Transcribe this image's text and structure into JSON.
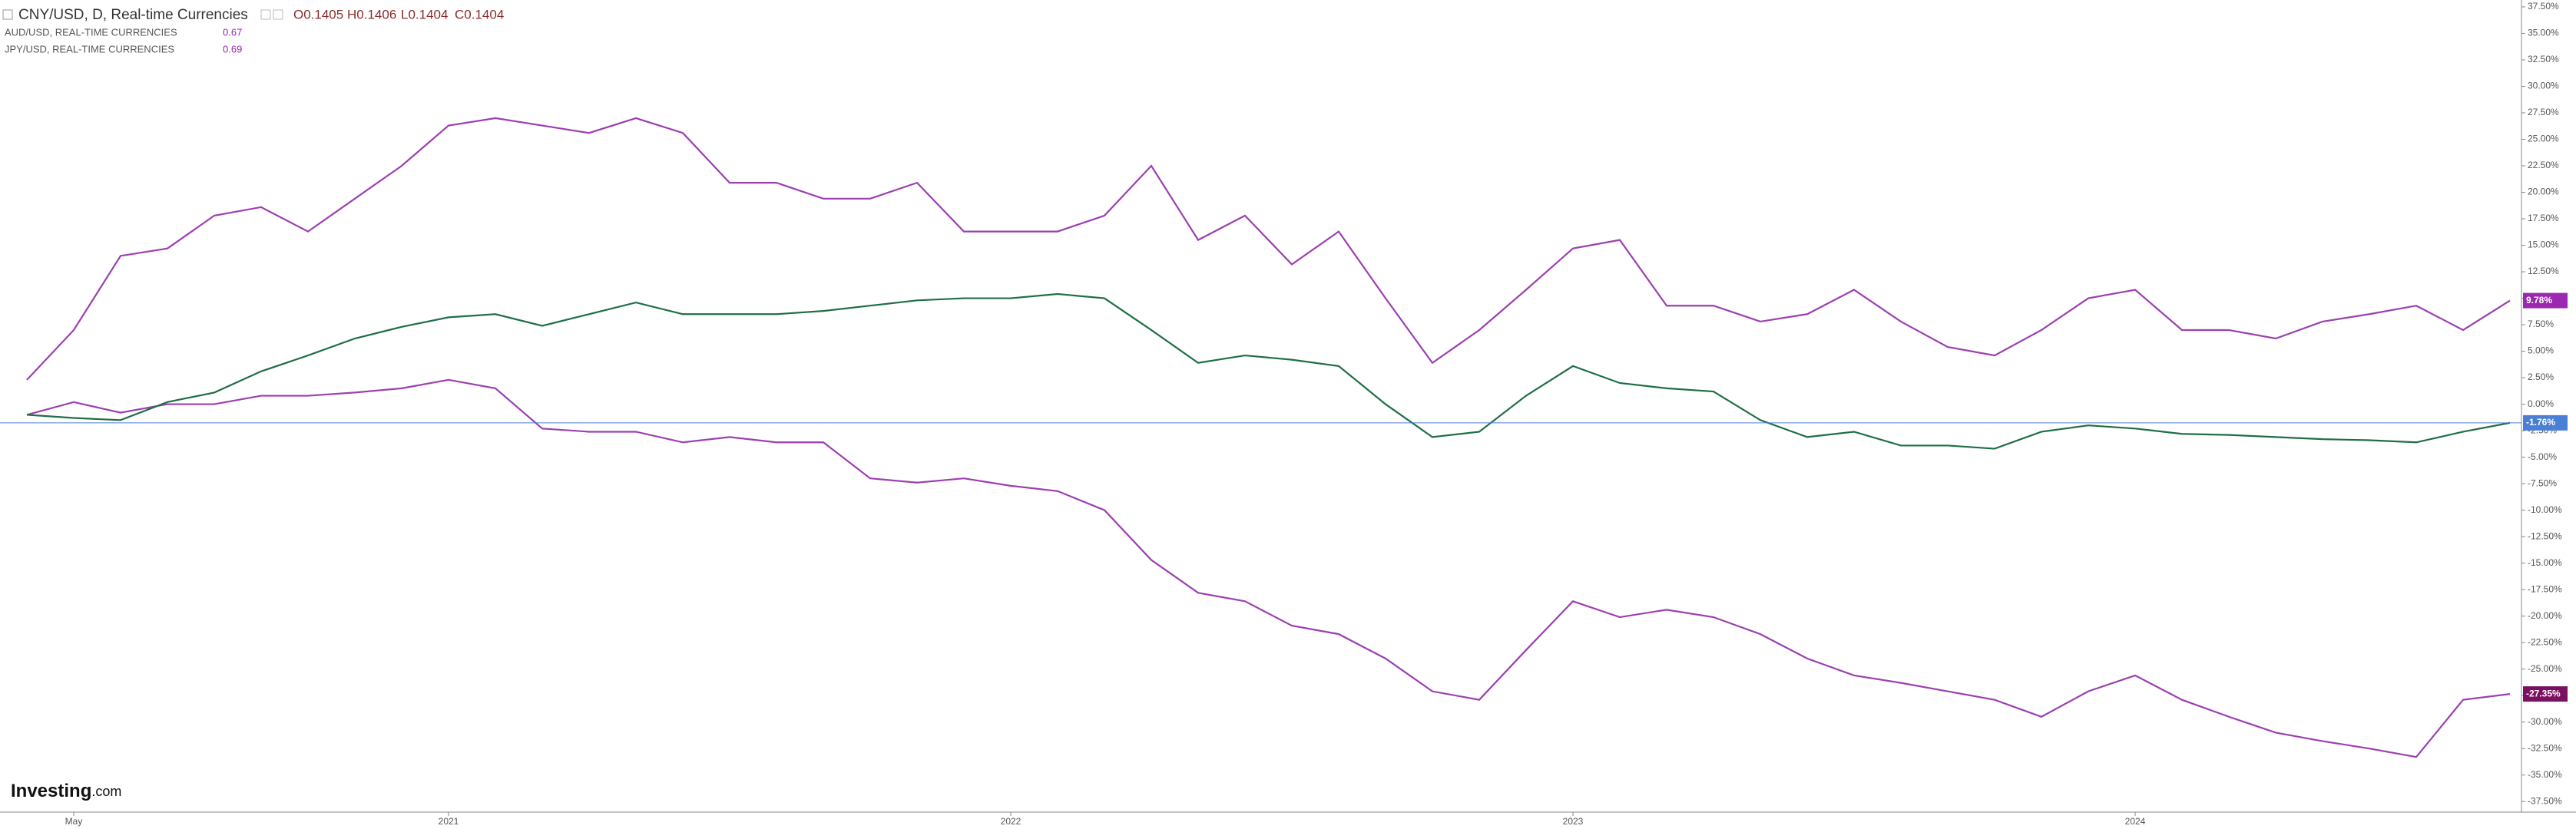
{
  "chart_data": {
    "type": "line",
    "title": "CNY/USD, D, Real-time Currencies",
    "ohlc": [
      "O0.1405",
      "H0.1406",
      "L0.1404",
      "C0.1404"
    ],
    "logo": [
      "Investing",
      ".com"
    ],
    "categories": [
      null,
      "May",
      null,
      null,
      null,
      null,
      null,
      null,
      null,
      "2021",
      null,
      null,
      null,
      null,
      null,
      null,
      null,
      null,
      null,
      null,
      null,
      "2022",
      null,
      null,
      null,
      null,
      null,
      null,
      null,
      null,
      null,
      null,
      null,
      "2023",
      null,
      null,
      null,
      null,
      null,
      null,
      null,
      null,
      null,
      null,
      null,
      "2024",
      null,
      null,
      null,
      null,
      null,
      null,
      null,
      null
    ],
    "series": [
      {
        "name": "AUD/USD, REAL-TIME CURRENCIES",
        "quote": "0.67",
        "color": "#9c3fb0",
        "label_color": "#9c27b0",
        "values": [
          2.3,
          7,
          14,
          14.7,
          17.8,
          18.6,
          16.3,
          19.4,
          22.5,
          26.3,
          27,
          26.3,
          25.6,
          27,
          25.6,
          20.9,
          20.9,
          19.4,
          19.4,
          20.9,
          16.3,
          16.3,
          16.3,
          17.8,
          22.5,
          15.5,
          17.8,
          13.2,
          16.3,
          10,
          3.9,
          7,
          10.8,
          14.7,
          15.5,
          9.3,
          9.3,
          7.8,
          8.5,
          10.8,
          7.8,
          5.4,
          4.6,
          7,
          10,
          10.8,
          7,
          7,
          6.2,
          7.8,
          8.5,
          9.3,
          7,
          9.78
        ],
        "value_labels": [
          null,
          null,
          null,
          null,
          null,
          null,
          null,
          null,
          null,
          null,
          null,
          null,
          null,
          null,
          null,
          null,
          null,
          null,
          null,
          null,
          null,
          null,
          null,
          null,
          null,
          null,
          null,
          null,
          null,
          null,
          null,
          null,
          null,
          null,
          null,
          null,
          null,
          null,
          null,
          null,
          null,
          null,
          null,
          null,
          null,
          null,
          null,
          null,
          null,
          null,
          null,
          null,
          null,
          "9.78%"
        ]
      },
      {
        "name": "JPY/USD, REAL-TIME CURRENCIES",
        "quote": "0.69",
        "color": "#9c3fb0",
        "label_color": "#7b1060",
        "values": [
          -1,
          0.2,
          -0.8,
          0,
          0,
          0.8,
          0.8,
          1.1,
          1.5,
          2.3,
          1.5,
          -2.3,
          -2.6,
          -2.6,
          -3.6,
          -3.1,
          -3.6,
          -3.6,
          -7,
          -7.4,
          -7,
          -7.7,
          -8.2,
          -10,
          -14.7,
          -17.8,
          -18.6,
          -20.9,
          -21.7,
          -24,
          -27.1,
          -27.9,
          -23.2,
          -18.6,
          -20.1,
          -19.4,
          -20.1,
          -21.7,
          -24,
          -25.6,
          -26.3,
          -27.1,
          -27.9,
          -29.5,
          -27.1,
          -25.6,
          -27.9,
          -29.5,
          -31,
          -31.8,
          -32.5,
          -33.3,
          -27.9,
          -27.35
        ],
        "value_labels": [
          null,
          null,
          null,
          null,
          null,
          null,
          null,
          null,
          null,
          null,
          null,
          null,
          null,
          null,
          null,
          null,
          null,
          null,
          null,
          null,
          null,
          null,
          null,
          null,
          null,
          null,
          null,
          null,
          null,
          null,
          null,
          null,
          null,
          null,
          null,
          null,
          null,
          null,
          null,
          null,
          null,
          null,
          null,
          null,
          null,
          null,
          null,
          null,
          null,
          null,
          null,
          null,
          null,
          "-27.35%"
        ]
      },
      {
        "color": "#1f6e45",
        "label_color": "#4a7fd6",
        "price_line": true,
        "values": [
          -1,
          -1.3,
          -1.5,
          0.2,
          1.1,
          3.1,
          4.6,
          6.2,
          7.3,
          8.2,
          8.5,
          7.4,
          8.5,
          9.6,
          8.5,
          8.5,
          8.5,
          8.8,
          9.3,
          9.8,
          10,
          10,
          10.4,
          10,
          7,
          3.9,
          4.6,
          4.2,
          3.6,
          0,
          -3.1,
          -2.6,
          0.8,
          3.6,
          2,
          1.5,
          1.2,
          -1.5,
          -3.1,
          -2.6,
          -3.9,
          -3.9,
          -4.2,
          -2.6,
          -2,
          -2.3,
          -2.8,
          -2.9,
          -3.1,
          -3.3,
          -3.4,
          -3.6,
          -2.6,
          -1.76
        ],
        "value_labels": [
          null,
          null,
          null,
          null,
          null,
          null,
          null,
          null,
          null,
          null,
          null,
          null,
          null,
          null,
          null,
          null,
          null,
          null,
          null,
          null,
          null,
          null,
          null,
          null,
          null,
          null,
          null,
          null,
          null,
          null,
          null,
          null,
          null,
          null,
          null,
          null,
          null,
          null,
          null,
          null,
          null,
          null,
          null,
          null,
          null,
          null,
          null,
          null,
          null,
          null,
          null,
          null,
          null,
          "-1.76%"
        ]
      }
    ],
    "ylim": [
      -38.5,
      38.15
    ],
    "yticks": [
      {
        "value": 37.5,
        "label": "37.50%"
      },
      {
        "value": 35,
        "label": "35.00%"
      },
      {
        "value": 32.5,
        "label": "32.50%"
      },
      {
        "value": 30,
        "label": "30.00%"
      },
      {
        "value": 27.5,
        "label": "27.50%"
      },
      {
        "value": 25,
        "label": "25.00%"
      },
      {
        "value": 22.5,
        "label": "22.50%"
      },
      {
        "value": 20,
        "label": "20.00%"
      },
      {
        "value": 17.5,
        "label": "17.50%"
      },
      {
        "value": 15,
        "label": "15.00%"
      },
      {
        "value": 12.5,
        "label": "12.50%"
      },
      {
        "value": 10,
        "label": "10.00%"
      },
      {
        "value": 7.5,
        "label": "7.50%"
      },
      {
        "value": 5,
        "label": "5.00%"
      },
      {
        "value": 2.5,
        "label": "2.50%"
      },
      {
        "value": 0,
        "label": "0.00%"
      },
      {
        "value": -2.5,
        "label": "-2.50%"
      },
      {
        "value": -5,
        "label": "-5.00%"
      },
      {
        "value": -7.5,
        "label": "-7.50%"
      },
      {
        "value": -10,
        "label": "-10.00%"
      },
      {
        "value": -12.5,
        "label": "-12.50%"
      },
      {
        "value": -15,
        "label": "-15.00%"
      },
      {
        "value": -17.5,
        "label": "-17.50%"
      },
      {
        "value": -20,
        "label": "-20.00%"
      },
      {
        "value": -22.5,
        "label": "-22.50%"
      },
      {
        "value": -25,
        "label": "-25.00%"
      },
      {
        "value": -27.5,
        "label": "-27.50%"
      },
      {
        "value": -30,
        "label": "-30.00%"
      },
      {
        "value": -32.5,
        "label": "-32.50%"
      },
      {
        "value": -35,
        "label": "-35.00%"
      },
      {
        "value": -37.5,
        "label": "-37.50%"
      }
    ],
    "grid": false
  }
}
